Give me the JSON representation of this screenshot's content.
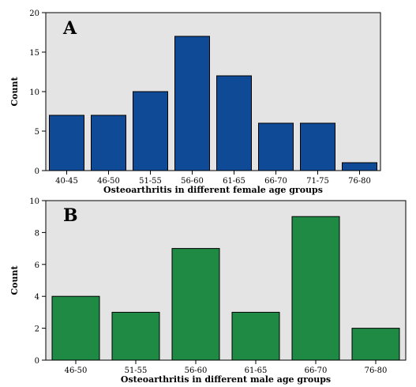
{
  "chart_data": [
    {
      "type": "bar",
      "panel_label": "A",
      "categories": [
        "40-45",
        "46-50",
        "51-55",
        "56-60",
        "61-65",
        "66-70",
        "71-75",
        "76-80"
      ],
      "values": [
        7,
        7,
        10,
        17,
        12,
        6,
        6,
        1
      ],
      "xlabel": "Osteoarthritis in different female age groups",
      "ylabel": "Count",
      "ylim": [
        0,
        20
      ],
      "yticks": [
        "0",
        "5",
        "10",
        "15",
        "20"
      ],
      "bar_color": "#0e4a96",
      "background_color": "#e4e4e4",
      "grid": false
    },
    {
      "type": "bar",
      "panel_label": "B",
      "categories": [
        "46-50",
        "51-55",
        "56-60",
        "61-65",
        "66-70",
        "76-80"
      ],
      "values": [
        4,
        3,
        7,
        3,
        9,
        2
      ],
      "xlabel": "Osteoarthritis in different male age groups",
      "ylabel": "Count",
      "ylim": [
        0,
        10
      ],
      "yticks": [
        "0",
        "2",
        "4",
        "6",
        "8",
        "10"
      ],
      "bar_color": "#1e8a44",
      "background_color": "#e4e4e4",
      "grid": false
    }
  ]
}
